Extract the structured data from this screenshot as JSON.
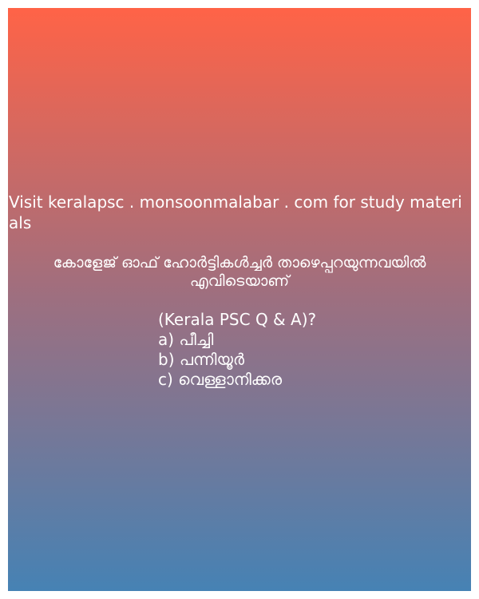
{
  "watermark": "Visit keralapsc . monsoonmalabar . com for study materials",
  "question": {
    "line1": "കോളേജ് ഓഫ് ഹോർട്ടികൾച്ചർ താഴെപ്പറയുന്നവയിൽ",
    "line2": "എവിടെയാണ്"
  },
  "tag": "(Kerala PSC Q & A)?",
  "options": [
    {
      "letter": "a)",
      "text": "പീച്ചി"
    },
    {
      "letter": "b)",
      "text": "പന്നിയൂർ"
    },
    {
      "letter": "c)",
      "text": "വെള്ളാനിക്കര"
    }
  ],
  "colors": {
    "top": "#ff6347",
    "bottom": "#4682b4",
    "text": "#ffffff"
  }
}
